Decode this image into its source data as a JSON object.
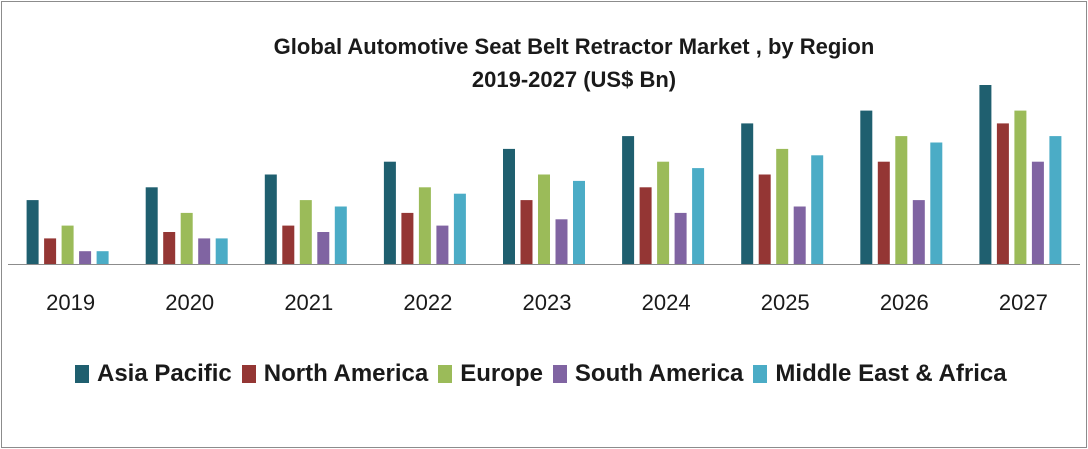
{
  "chart_data": {
    "type": "bar",
    "title": "Global Automotive Seat Belt Retractor Market , by Region",
    "subtitle": "2019-2027 (US$ Bn)",
    "categories": [
      "2019",
      "2020",
      "2021",
      "2022",
      "2023",
      "2024",
      "2025",
      "2026",
      "2027"
    ],
    "series": [
      {
        "name": "Asia Pacific",
        "color": "#1f5f6f",
        "values": [
          5,
          6,
          7,
          8,
          9,
          10,
          11,
          12,
          14
        ]
      },
      {
        "name": "North America",
        "color": "#943634",
        "values": [
          2,
          2.5,
          3,
          4,
          5,
          6,
          7,
          8,
          11
        ]
      },
      {
        "name": "Europe",
        "color": "#9bbb59",
        "values": [
          3,
          4,
          5,
          6,
          7,
          8,
          9,
          10,
          12
        ]
      },
      {
        "name": "South America",
        "color": "#8064a2",
        "values": [
          1,
          2,
          2.5,
          3,
          3.5,
          4,
          4.5,
          5,
          8
        ]
      },
      {
        "name": "Middle East & Africa",
        "color": "#4bacc6",
        "values": [
          1,
          2,
          4.5,
          5.5,
          6.5,
          7.5,
          8.5,
          9.5,
          10
        ]
      }
    ],
    "ylim": [
      0,
      14
    ],
    "grid": false,
    "legend_position": "bottom"
  }
}
